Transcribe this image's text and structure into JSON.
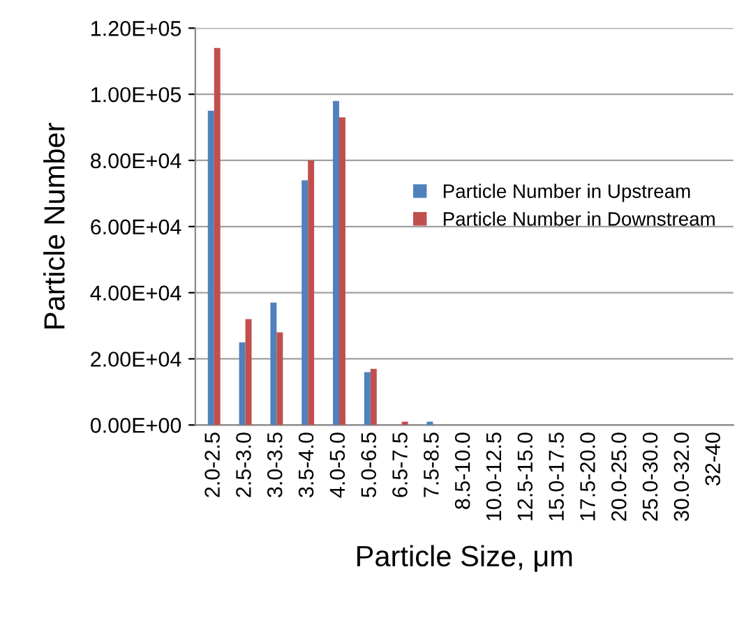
{
  "chart_data": {
    "type": "bar",
    "xlabel": "Particle Size, μm",
    "ylabel": "Particle Number",
    "categories": [
      "2.0-2.5",
      "2.5-3.0",
      "3.0-3.5",
      "3.5-4.0",
      "4.0-5.0",
      "5.0-6.5",
      "6.5-7.5",
      "7.5-8.5",
      "8.5-10.0",
      "10.0-12.5",
      "12.5-15.0",
      "15.0-17.5",
      "17.5-20.0",
      "20.0-25.0",
      "25.0-30.0",
      "30.0-32.0",
      "32-40"
    ],
    "series": [
      {
        "name": "Particle Number in Upstream",
        "color": "#4f81bd",
        "values": [
          95000,
          25000,
          37000,
          74000,
          98000,
          16000,
          0,
          1000,
          0,
          0,
          0,
          0,
          0,
          0,
          0,
          0,
          0
        ]
      },
      {
        "name": "Particle Number in Downstream",
        "color": "#c0504d",
        "values": [
          114000,
          32000,
          28000,
          80000,
          93000,
          17000,
          1000,
          0,
          0,
          0,
          0,
          0,
          0,
          0,
          0,
          0,
          0
        ]
      }
    ],
    "ylim": [
      0,
      120000
    ],
    "yticks": [
      {
        "value": 0,
        "label": "0.00E+00"
      },
      {
        "value": 20000,
        "label": "2.00E+04"
      },
      {
        "value": 40000,
        "label": "4.00E+04"
      },
      {
        "value": 60000,
        "label": "6.00E+04"
      },
      {
        "value": 80000,
        "label": "8.00E+04"
      },
      {
        "value": 100000,
        "label": "1.00E+05"
      },
      {
        "value": 120000,
        "label": "1.20E+05"
      }
    ],
    "grid": "y",
    "legend": "right"
  }
}
